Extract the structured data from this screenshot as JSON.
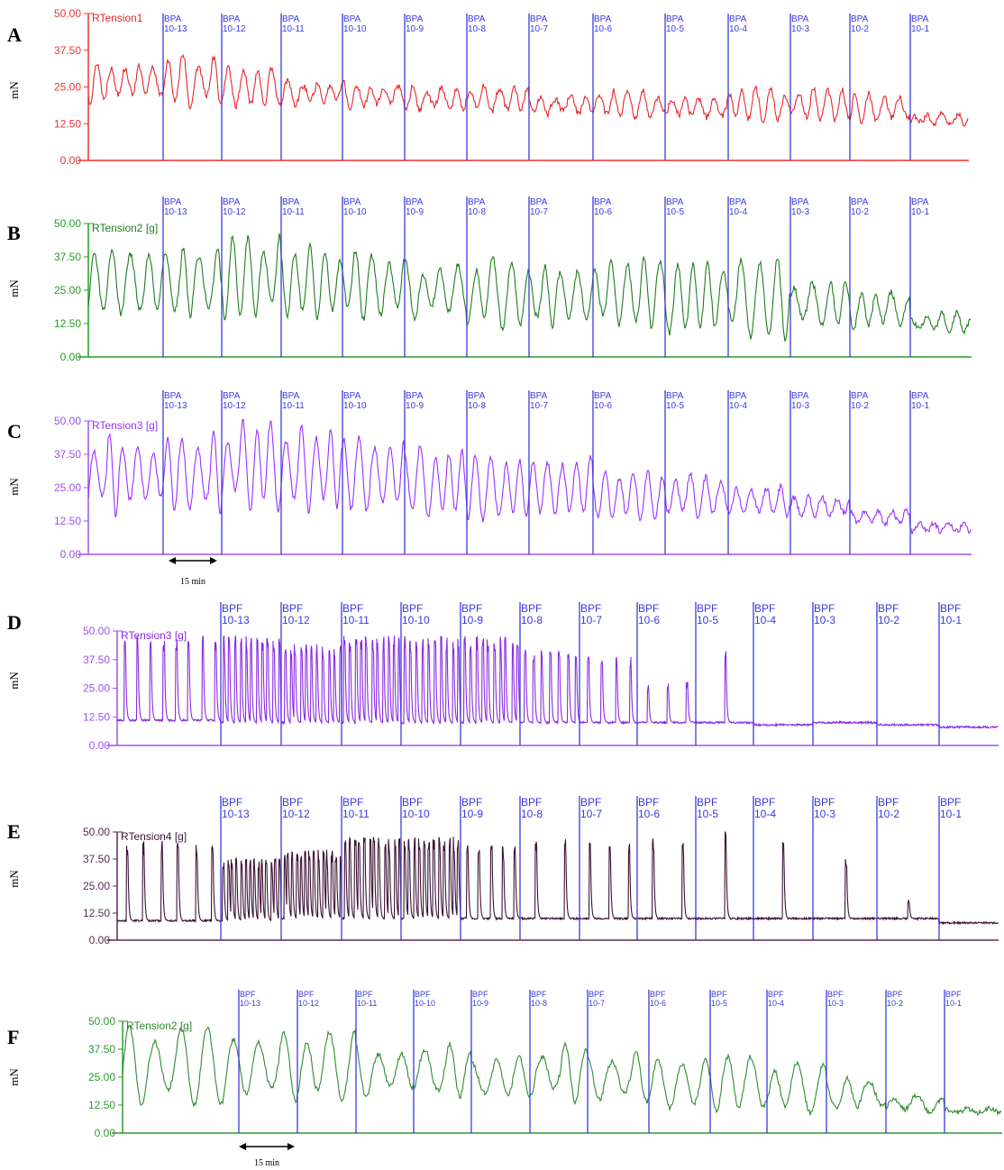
{
  "y_ticks": [
    "50.00",
    "37.50",
    "25.00",
    "12.50",
    "0.00"
  ],
  "y_unit": "mN",
  "scale_bar_label": "15 min",
  "chart_data": [
    {
      "panel": "A",
      "type": "line",
      "channel_label": "RTension1",
      "ylabel": "mN",
      "ylim": [
        0,
        50
      ],
      "color": "#e8262a",
      "pattern": "oscillation",
      "event_prefix": "BPA",
      "events": [
        "10-13",
        "10-12",
        "10-11",
        "10-10",
        "10-9",
        "10-8",
        "10-7",
        "10-6",
        "10-5",
        "10-4",
        "10-3",
        "10-2",
        "10-1"
      ],
      "segment_mean": [
        27,
        27,
        25,
        23,
        22,
        21,
        21,
        19,
        19,
        18,
        19,
        19,
        18,
        14
      ],
      "segment_amplitude": [
        7,
        9,
        6,
        4,
        4,
        4,
        4,
        3,
        4,
        4,
        5,
        5,
        5,
        2
      ]
    },
    {
      "panel": "B",
      "type": "line",
      "channel_label": "RTension2 [g]",
      "ylabel": "mN",
      "ylim": [
        0,
        50
      ],
      "color": "#1e7d1e",
      "pattern": "oscillation",
      "event_prefix": "BPA",
      "events": [
        "10-13",
        "10-12",
        "10-11",
        "10-10",
        "10-9",
        "10-8",
        "10-7",
        "10-6",
        "10-5",
        "10-4",
        "10-3",
        "10-2",
        "10-1"
      ],
      "segment_mean": [
        28,
        28,
        30,
        28,
        27,
        25,
        24,
        23,
        24,
        23,
        22,
        20,
        18,
        13
      ],
      "segment_amplitude": [
        12,
        12,
        15,
        12,
        12,
        10,
        12,
        12,
        12,
        14,
        14,
        7,
        7,
        4
      ]
    },
    {
      "panel": "C",
      "type": "line",
      "channel_label": "RTension3 [g]",
      "ylabel": "mN",
      "ylim": [
        0,
        50
      ],
      "color": "#9b30ff",
      "pattern": "oscillation",
      "event_prefix": "BPA",
      "events": [
        "10-13",
        "10-12",
        "10-11",
        "10-10",
        "10-9",
        "10-8",
        "10-7",
        "10-6",
        "10-5",
        "10-4",
        "10-3",
        "10-2",
        "10-1"
      ],
      "segment_mean": [
        30,
        30,
        33,
        32,
        30,
        27,
        25,
        25,
        22,
        22,
        20,
        18,
        14,
        10
      ],
      "segment_amplitude": [
        14,
        17,
        15,
        15,
        17,
        12,
        12,
        12,
        8,
        8,
        6,
        4,
        4,
        2
      ]
    },
    {
      "panel": "D",
      "type": "line",
      "channel_label": "RTension3 [g]",
      "ylabel": "mN",
      "ylim": [
        0,
        50
      ],
      "color": "#8a2be2",
      "pattern": "spikes",
      "event_prefix": "BPF",
      "events": [
        "10-13",
        "10-12",
        "10-11",
        "10-10",
        "10-9",
        "10-8",
        "10-7",
        "10-6",
        "10-5",
        "10-4",
        "10-3",
        "10-2",
        "10-1"
      ],
      "segment_baseline": [
        11,
        10,
        10,
        10,
        10,
        10,
        10,
        10,
        10,
        10,
        9,
        10,
        9,
        8
      ],
      "segment_spike_count": [
        8,
        11,
        11,
        11,
        10,
        10,
        7,
        4,
        3,
        1,
        0,
        0,
        0,
        0
      ],
      "segment_spike_peak": [
        48,
        48,
        45,
        48,
        48,
        48,
        42,
        40,
        28,
        42,
        0,
        0,
        0,
        0
      ]
    },
    {
      "panel": "E",
      "type": "line",
      "channel_label": "RTension4 [g]",
      "ylabel": "mN",
      "ylim": [
        0,
        50
      ],
      "color": "#3d1437",
      "pattern": "spikes",
      "event_prefix": "BPF",
      "events": [
        "10-13",
        "10-12",
        "10-11",
        "10-10",
        "10-9",
        "10-8",
        "10-7",
        "10-6",
        "10-5",
        "10-4",
        "10-3",
        "10-2",
        "10-1"
      ],
      "segment_baseline": [
        9,
        9,
        10,
        10,
        10,
        10,
        10,
        10,
        10,
        10,
        10,
        10,
        10,
        8
      ],
      "segment_spike_count": [
        6,
        14,
        14,
        12,
        12,
        5,
        2,
        3,
        2,
        1,
        1,
        1,
        1,
        0
      ],
      "segment_spike_peak": [
        46,
        38,
        42,
        48,
        48,
        45,
        48,
        45,
        48,
        50,
        48,
        38,
        20,
        0
      ]
    },
    {
      "panel": "F",
      "type": "line",
      "channel_label": "RTension2 [g]",
      "ylabel": "mN",
      "ylim": [
        0,
        50
      ],
      "color": "#2e8b2e",
      "pattern": "oscillation",
      "event_prefix": "BPF",
      "events": [
        "10-13",
        "10-12",
        "10-11",
        "10-10",
        "10-9",
        "10-8",
        "10-7",
        "10-6",
        "10-5",
        "10-4",
        "10-3",
        "10-2",
        "10-1"
      ],
      "segment_mean": [
        30,
        30,
        30,
        28,
        28,
        25,
        27,
        25,
        22,
        23,
        20,
        18,
        13,
        10
      ],
      "segment_amplitude": [
        16,
        17,
        16,
        12,
        14,
        12,
        12,
        12,
        10,
        12,
        10,
        6,
        4,
        1
      ]
    }
  ]
}
